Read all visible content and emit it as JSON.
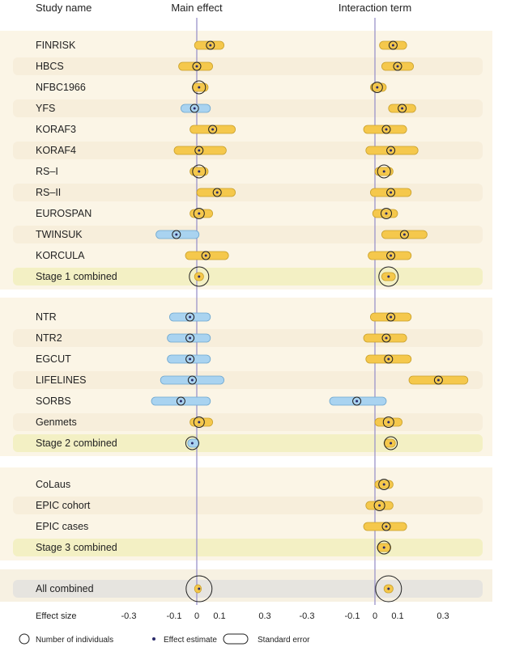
{
  "headers": {
    "study": "Study name",
    "main": "Main effect",
    "interaction": "Interaction term"
  },
  "chart_data": {
    "type": "forest",
    "panels": [
      "Main effect",
      "Interaction term"
    ],
    "x_ticks": [
      "-0.3",
      "-0.1",
      "0",
      "0.1",
      "0.3"
    ],
    "x_tick_values": [
      -0.3,
      -0.1,
      0,
      0.1,
      0.3
    ],
    "axis_label": "Effect size",
    "reference_line": 0,
    "colors": {
      "positive": "#f5c84c",
      "negative": "#a9d3f0",
      "line": "#9a93c9",
      "marker": "#2a2a6a"
    },
    "groups": [
      {
        "rows": [
          {
            "name": "FINRISK",
            "main": {
              "est": 0.06,
              "lo": -0.01,
              "hi": 0.12,
              "n": 1
            },
            "inter": {
              "est": 0.08,
              "lo": 0.02,
              "hi": 0.14,
              "n": 1
            }
          },
          {
            "name": "HBCS",
            "main": {
              "est": 0.0,
              "lo": -0.08,
              "hi": 0.07,
              "n": 1
            },
            "inter": {
              "est": 0.1,
              "lo": 0.03,
              "hi": 0.17,
              "n": 1
            }
          },
          {
            "name": "NFBC1966",
            "main": {
              "est": 0.01,
              "lo": -0.02,
              "hi": 0.05,
              "n": 3
            },
            "inter": {
              "est": 0.01,
              "lo": -0.02,
              "hi": 0.05,
              "n": 2
            }
          },
          {
            "name": "YFS",
            "main": {
              "est": -0.01,
              "lo": -0.07,
              "hi": 0.06,
              "n": 1
            },
            "inter": {
              "est": 0.12,
              "lo": 0.06,
              "hi": 0.18,
              "n": 1
            }
          },
          {
            "name": "KORAF3",
            "main": {
              "est": 0.07,
              "lo": -0.03,
              "hi": 0.17,
              "n": 1
            },
            "inter": {
              "est": 0.05,
              "lo": -0.05,
              "hi": 0.14,
              "n": 1
            }
          },
          {
            "name": "KORAF4",
            "main": {
              "est": 0.01,
              "lo": -0.1,
              "hi": 0.13,
              "n": 1
            },
            "inter": {
              "est": 0.07,
              "lo": -0.04,
              "hi": 0.19,
              "n": 1
            }
          },
          {
            "name": "RS–I",
            "main": {
              "est": 0.01,
              "lo": -0.03,
              "hi": 0.05,
              "n": 3
            },
            "inter": {
              "est": 0.04,
              "lo": 0.0,
              "hi": 0.08,
              "n": 3
            }
          },
          {
            "name": "RS–II",
            "main": {
              "est": 0.09,
              "lo": 0.0,
              "hi": 0.17,
              "n": 1
            },
            "inter": {
              "est": 0.07,
              "lo": -0.02,
              "hi": 0.16,
              "n": 1
            }
          },
          {
            "name": "EUROSPAN",
            "main": {
              "est": 0.01,
              "lo": -0.03,
              "hi": 0.07,
              "n": 2
            },
            "inter": {
              "est": 0.05,
              "lo": -0.01,
              "hi": 0.1,
              "n": 2
            }
          },
          {
            "name": "TWINSUK",
            "main": {
              "est": -0.09,
              "lo": -0.18,
              "hi": 0.01,
              "n": 1
            },
            "inter": {
              "est": 0.13,
              "lo": 0.03,
              "hi": 0.23,
              "n": 1
            }
          },
          {
            "name": "KORCULA",
            "main": {
              "est": 0.04,
              "lo": -0.05,
              "hi": 0.14,
              "n": 1
            },
            "inter": {
              "est": 0.07,
              "lo": -0.03,
              "hi": 0.16,
              "n": 1
            }
          }
        ],
        "combined": {
          "name": "Stage 1 combined",
          "main": {
            "est": 0.01,
            "lo": -0.01,
            "hi": 0.03,
            "n": 5
          },
          "inter": {
            "est": 0.06,
            "lo": 0.03,
            "hi": 0.09,
            "n": 5
          }
        }
      },
      {
        "rows": [
          {
            "name": "NTR",
            "main": {
              "est": -0.03,
              "lo": -0.12,
              "hi": 0.06,
              "n": 1
            },
            "inter": {
              "est": 0.07,
              "lo": -0.02,
              "hi": 0.16,
              "n": 1
            }
          },
          {
            "name": "NTR2",
            "main": {
              "est": -0.03,
              "lo": -0.13,
              "hi": 0.06,
              "n": 1
            },
            "inter": {
              "est": 0.05,
              "lo": -0.05,
              "hi": 0.14,
              "n": 1
            }
          },
          {
            "name": "EGCUT",
            "main": {
              "est": -0.03,
              "lo": -0.13,
              "hi": 0.06,
              "n": 1
            },
            "inter": {
              "est": 0.06,
              "lo": -0.04,
              "hi": 0.16,
              "n": 1
            }
          },
          {
            "name": "LIFELINES",
            "main": {
              "est": -0.02,
              "lo": -0.16,
              "hi": 0.12,
              "n": 1
            },
            "inter": {
              "est": 0.28,
              "lo": 0.15,
              "hi": 0.41,
              "n": 1
            }
          },
          {
            "name": "SORBS",
            "main": {
              "est": -0.07,
              "lo": -0.2,
              "hi": 0.06,
              "n": 1
            },
            "inter": {
              "est": -0.08,
              "lo": -0.2,
              "hi": 0.05,
              "n": 1
            }
          },
          {
            "name": "Genmets",
            "main": {
              "est": 0.01,
              "lo": -0.03,
              "hi": 0.07,
              "n": 2
            },
            "inter": {
              "est": 0.06,
              "lo": 0.0,
              "hi": 0.12,
              "n": 2
            }
          }
        ],
        "combined": {
          "name": "Stage 2 combined",
          "main": {
            "est": -0.02,
            "lo": -0.04,
            "hi": 0.01,
            "n": 3
          },
          "inter": {
            "est": 0.07,
            "lo": 0.04,
            "hi": 0.09,
            "n": 3
          }
        }
      },
      {
        "rows": [
          {
            "name": "CoLaus",
            "main": null,
            "inter": {
              "est": 0.04,
              "lo": 0.0,
              "hi": 0.08,
              "n": 2
            }
          },
          {
            "name": "EPIC cohort",
            "main": null,
            "inter": {
              "est": 0.02,
              "lo": -0.04,
              "hi": 0.08,
              "n": 2
            }
          },
          {
            "name": "EPIC cases",
            "main": null,
            "inter": {
              "est": 0.05,
              "lo": -0.05,
              "hi": 0.14,
              "n": 1
            }
          },
          {
            "name": "Stage 3 combined",
            "main": null,
            "inter": {
              "est": 0.04,
              "lo": 0.01,
              "hi": 0.07,
              "n": 3
            },
            "highlight": true
          }
        ],
        "combined": null
      },
      {
        "rows": [],
        "combined": {
          "name": "All combined",
          "main": {
            "est": 0.01,
            "lo": -0.01,
            "hi": 0.02,
            "n": 6
          },
          "inter": {
            "est": 0.06,
            "lo": 0.04,
            "hi": 0.08,
            "n": 6
          },
          "grey": true
        }
      }
    ]
  },
  "legend": {
    "individuals": "Number of individuals",
    "estimate": "Effect estimate",
    "se": "Standard error"
  }
}
